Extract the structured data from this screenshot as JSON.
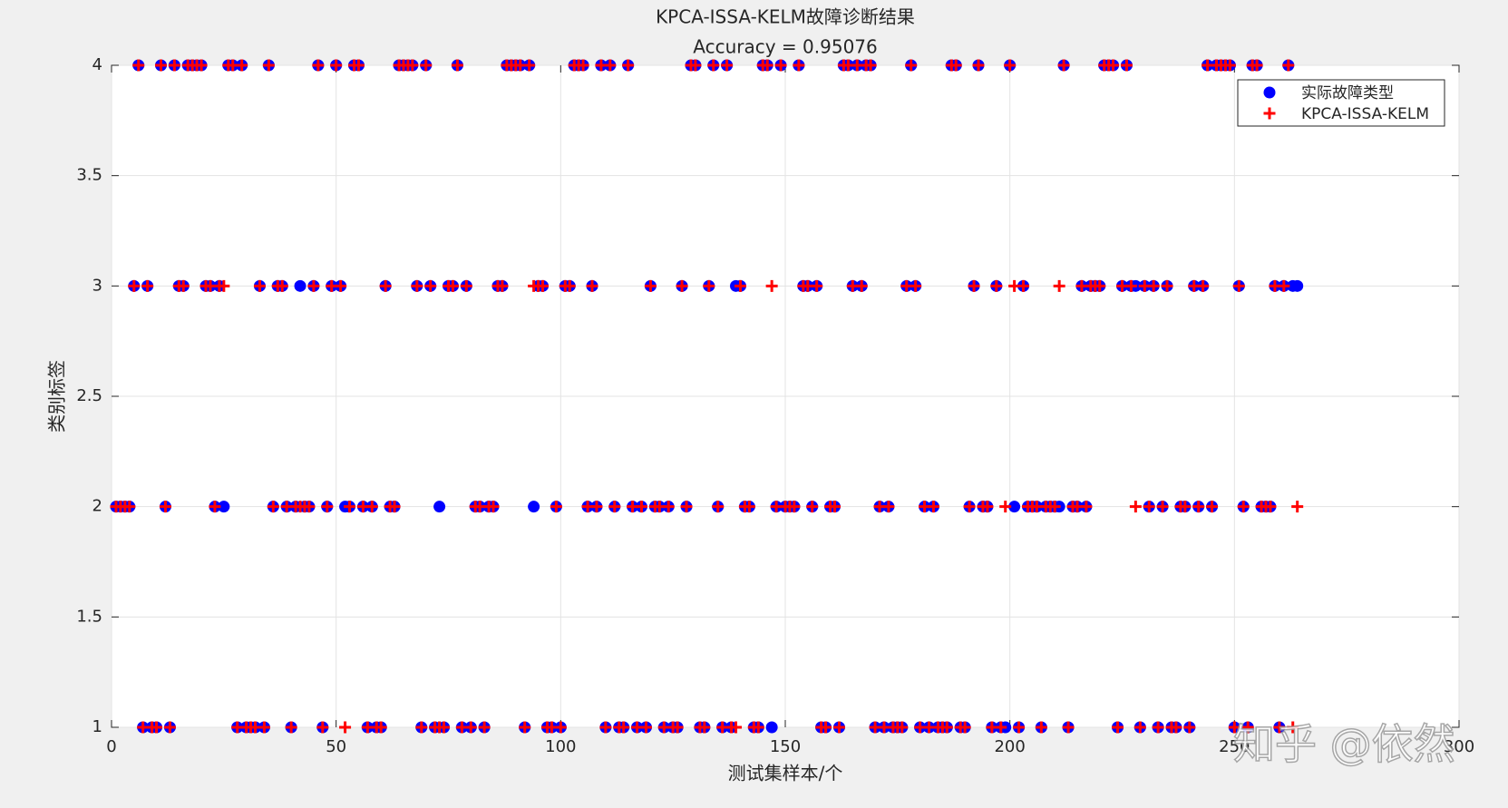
{
  "chart_data": {
    "type": "scatter",
    "title": "KPCA-ISSA-KELM故障诊断结果",
    "subtitle": "Accuracy = 0.95076",
    "xlabel": "测试集样本/个",
    "ylabel": "类别标签",
    "watermark": "知乎 @依然",
    "xlim": [
      0,
      300
    ],
    "xticks": [
      0,
      50,
      100,
      150,
      200,
      250,
      300
    ],
    "ylim": [
      1,
      4
    ],
    "yticks": [
      1,
      1.5,
      2,
      2.5,
      3,
      3.5,
      4
    ],
    "grid": true,
    "legend": "northeast",
    "x": [
      1,
      2,
      3,
      4,
      5,
      6,
      7,
      8,
      9,
      10,
      11,
      12,
      13,
      14,
      15,
      16,
      17,
      18,
      19,
      20,
      21,
      22,
      23,
      24,
      25,
      26,
      27,
      28,
      29,
      30,
      31,
      32,
      33,
      34,
      35,
      36,
      37,
      38,
      39,
      40,
      41,
      42,
      43,
      44,
      45,
      46,
      47,
      48,
      49,
      50,
      51,
      52,
      53,
      54,
      55,
      56,
      57,
      58,
      59,
      60,
      61,
      62,
      63,
      64,
      65,
      66,
      67,
      68,
      69,
      70,
      71,
      72,
      73,
      74,
      75,
      76,
      77,
      78,
      79,
      80,
      81,
      82,
      83,
      84,
      85,
      86,
      87,
      88,
      89,
      90,
      91,
      92,
      93,
      94,
      95,
      96,
      97,
      98,
      99,
      100,
      101,
      102,
      103,
      104,
      105,
      106,
      107,
      108,
      109,
      110,
      111,
      112,
      113,
      114,
      115,
      116,
      117,
      118,
      119,
      120,
      121,
      122,
      123,
      124,
      125,
      126,
      127,
      128,
      129,
      130,
      131,
      132,
      133,
      134,
      135,
      136,
      137,
      138,
      139,
      140,
      141,
      142,
      143,
      144,
      145,
      146,
      147,
      148,
      149,
      150,
      151,
      152,
      153,
      154,
      155,
      156,
      157,
      158,
      159,
      160,
      161,
      162,
      163,
      164,
      165,
      166,
      167,
      168,
      169,
      170,
      171,
      172,
      173,
      174,
      175,
      176,
      177,
      178,
      179,
      180,
      181,
      182,
      183,
      184,
      185,
      186,
      187,
      188,
      189,
      190,
      191,
      192,
      193,
      194,
      195,
      196,
      197,
      198,
      199,
      200,
      201,
      202,
      203,
      204,
      205,
      206,
      207,
      208,
      209,
      210,
      211,
      212,
      213,
      214,
      215,
      216,
      217,
      218,
      219,
      220,
      221,
      222,
      223,
      224,
      225,
      226,
      227,
      228,
      229,
      230,
      231,
      232,
      233,
      234,
      235,
      236,
      237,
      238,
      239,
      240,
      241,
      242,
      243,
      244,
      245,
      246,
      247,
      248,
      249,
      250,
      251,
      252,
      253,
      254,
      255,
      256,
      257,
      258,
      259,
      260,
      261,
      262,
      263,
      264
    ],
    "series": [
      {
        "name": "实际故障类型",
        "color": "#0000ff",
        "marker": "o",
        "values": [
          2,
          2,
          2,
          2,
          3,
          4,
          1,
          3,
          1,
          1,
          4,
          2,
          1,
          4,
          3,
          3,
          4,
          4,
          4,
          4,
          3,
          3,
          2,
          3,
          2,
          4,
          4,
          1,
          4,
          1,
          1,
          1,
          3,
          1,
          4,
          2,
          3,
          3,
          2,
          1,
          2,
          3,
          2,
          2,
          3,
          4,
          1,
          2,
          3,
          4,
          3,
          2,
          2,
          4,
          4,
          2,
          1,
          2,
          1,
          1,
          3,
          2,
          2,
          4,
          4,
          4,
          4,
          3,
          1,
          4,
          3,
          1,
          2,
          1,
          3,
          3,
          4,
          1,
          3,
          1,
          2,
          2,
          1,
          2,
          2,
          3,
          3,
          4,
          4,
          4,
          4,
          1,
          4,
          2,
          3,
          3,
          1,
          1,
          2,
          1,
          3,
          3,
          4,
          4,
          4,
          2,
          3,
          2,
          4,
          1,
          4,
          2,
          1,
          1,
          4,
          2,
          1,
          2,
          1,
          3,
          2,
          2,
          1,
          2,
          1,
          1,
          3,
          2,
          4,
          4,
          1,
          1,
          3,
          4,
          2,
          1,
          4,
          1,
          3,
          3,
          2,
          2,
          1,
          1,
          4,
          4,
          1,
          2,
          4,
          2,
          2,
          2,
          4,
          3,
          3,
          2,
          3,
          1,
          1,
          2,
          2,
          1,
          4,
          4,
          3,
          4,
          3,
          4,
          4,
          1,
          2,
          1,
          2,
          1,
          1,
          1,
          3,
          4,
          3,
          1,
          2,
          1,
          2,
          1,
          1,
          1,
          4,
          4,
          1,
          1,
          2,
          3,
          4,
          2,
          2,
          1,
          3,
          1,
          1,
          4,
          2,
          1,
          3,
          2,
          2,
          2,
          1,
          2,
          2,
          2,
          2,
          4,
          1,
          2,
          2,
          3,
          2,
          3,
          3,
          3,
          4,
          4,
          4,
          1,
          3,
          4,
          3,
          3,
          1,
          3,
          2,
          3,
          1,
          2,
          3,
          1,
          1,
          2,
          2,
          1,
          3,
          2,
          3,
          4,
          2,
          4,
          4,
          4,
          4,
          1,
          3,
          2,
          1,
          4,
          4,
          2,
          2,
          2,
          3,
          1,
          3,
          4,
          3,
          3
        ]
      },
      {
        "name": "KPCA-ISSA-KELM",
        "color": "#ff0000",
        "marker": "+",
        "values": [
          2,
          2,
          2,
          2,
          3,
          4,
          1,
          3,
          1,
          1,
          4,
          2,
          1,
          4,
          3,
          3,
          4,
          4,
          4,
          4,
          3,
          3,
          2,
          3,
          3,
          4,
          4,
          1,
          4,
          1,
          1,
          1,
          3,
          1,
          4,
          2,
          3,
          3,
          2,
          1,
          2,
          2,
          2,
          2,
          3,
          4,
          1,
          2,
          3,
          4,
          3,
          1,
          2,
          4,
          4,
          2,
          1,
          2,
          1,
          1,
          3,
          2,
          2,
          4,
          4,
          4,
          4,
          3,
          1,
          4,
          3,
          1,
          1,
          1,
          3,
          3,
          4,
          1,
          3,
          1,
          2,
          2,
          1,
          2,
          2,
          3,
          3,
          4,
          4,
          4,
          4,
          1,
          4,
          3,
          3,
          3,
          1,
          1,
          2,
          1,
          3,
          3,
          4,
          4,
          4,
          2,
          3,
          2,
          4,
          1,
          4,
          2,
          1,
          1,
          4,
          2,
          1,
          2,
          1,
          3,
          2,
          2,
          1,
          2,
          1,
          1,
          3,
          2,
          4,
          4,
          1,
          1,
          3,
          4,
          2,
          1,
          4,
          1,
          1,
          3,
          2,
          2,
          1,
          1,
          4,
          4,
          3,
          2,
          4,
          2,
          2,
          2,
          4,
          3,
          3,
          2,
          3,
          1,
          1,
          2,
          2,
          1,
          4,
          4,
          3,
          4,
          3,
          4,
          4,
          1,
          2,
          1,
          2,
          1,
          1,
          1,
          3,
          4,
          3,
          1,
          2,
          1,
          2,
          1,
          1,
          1,
          4,
          4,
          1,
          1,
          2,
          3,
          4,
          2,
          2,
          1,
          3,
          1,
          2,
          4,
          3,
          1,
          3,
          2,
          2,
          2,
          1,
          2,
          2,
          2,
          3,
          4,
          1,
          2,
          2,
          3,
          2,
          3,
          3,
          3,
          4,
          4,
          4,
          1,
          3,
          4,
          3,
          2,
          1,
          3,
          2,
          3,
          1,
          2,
          3,
          1,
          1,
          2,
          2,
          1,
          3,
          2,
          3,
          4,
          2,
          4,
          4,
          4,
          4,
          1,
          3,
          2,
          1,
          4,
          4,
          2,
          2,
          2,
          3,
          1,
          3,
          4,
          1,
          2
        ]
      }
    ]
  }
}
